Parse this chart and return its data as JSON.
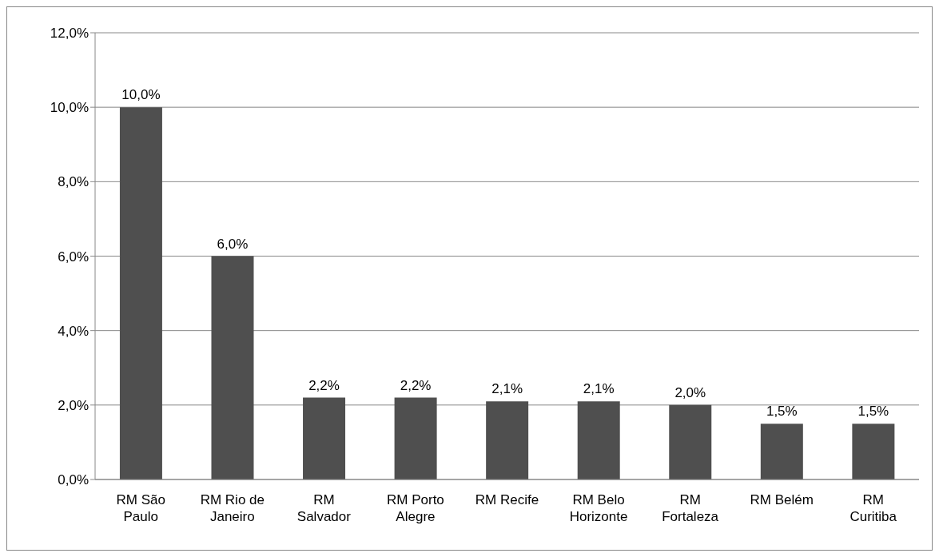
{
  "chart_data": {
    "type": "bar",
    "categories": [
      "RM São Paulo",
      "RM Rio de Janeiro",
      "RM Salvador",
      "RM Porto Alegre",
      "RM Recife",
      "RM Belo Horizonte",
      "RM Fortaleza",
      "RM Belém",
      "RM Curitiba"
    ],
    "values": [
      10.0,
      6.0,
      2.2,
      2.2,
      2.1,
      2.1,
      2.0,
      1.5,
      1.5
    ],
    "value_labels": [
      "10,0%",
      "6,0%",
      "2,2%",
      "2,2%",
      "2,1%",
      "2,1%",
      "2,0%",
      "1,5%",
      "1,5%"
    ],
    "color": "#4f4f4f",
    "ylim": [
      0,
      12
    ],
    "yticks": [
      {
        "value": 0,
        "label": "0,0%"
      },
      {
        "value": 2,
        "label": "2,0%"
      },
      {
        "value": 4,
        "label": "4,0%"
      },
      {
        "value": 6,
        "label": "6,0%"
      },
      {
        "value": 8,
        "label": "8,0%"
      },
      {
        "value": 10,
        "label": "10,0%"
      },
      {
        "value": 12,
        "label": "12,0%"
      }
    ],
    "grid": "y",
    "legend": false
  }
}
